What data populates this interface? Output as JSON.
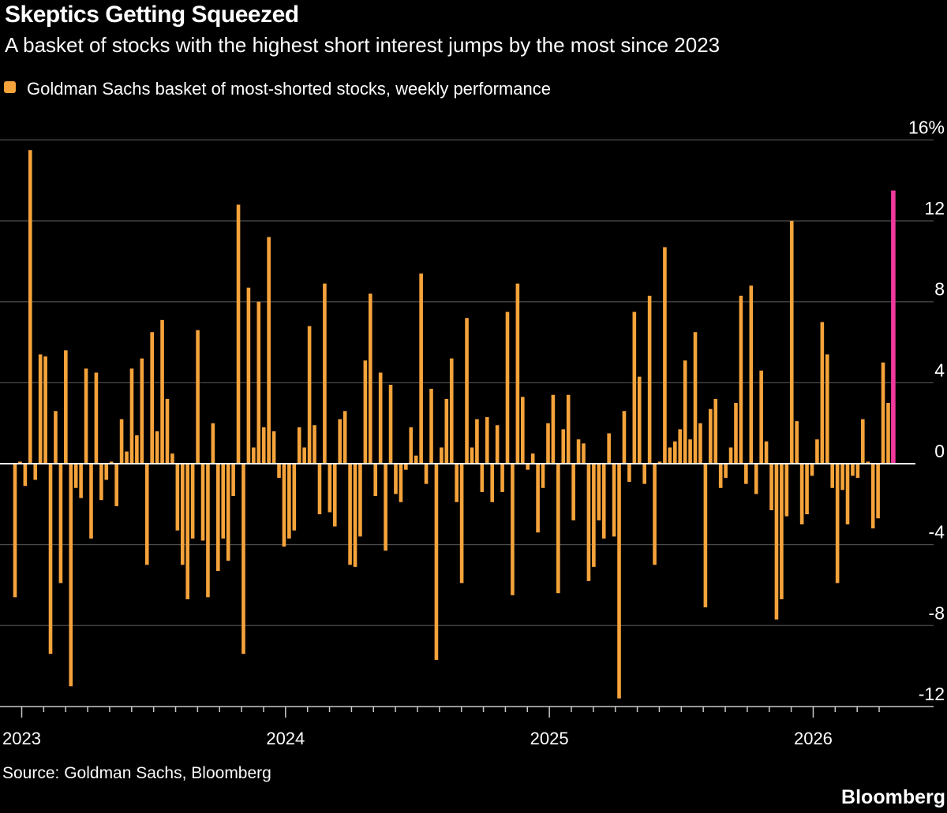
{
  "header": {
    "title": "Skeptics Getting Squeezed",
    "subtitle": "A basket of stocks with the highest short interest jumps by the most since 2023"
  },
  "legend": {
    "label": "Goldman Sachs basket of most-shorted stocks, weekly performance",
    "swatch_color": "#F5A33B"
  },
  "source": {
    "text": "Source: Goldman Sachs, Bloomberg"
  },
  "branding": {
    "logo": "Bloomberg"
  },
  "colors": {
    "background": "#000000",
    "bar_orange": "#F5A33B",
    "highlight_pink": "#F0399C",
    "gridline": "#4b4b4b",
    "zero_line": "#ffffff",
    "axis_line": "#c8c8c8",
    "text": "#ffffff"
  },
  "chart_data": {
    "type": "bar",
    "title": "Skeptics Getting Squeezed",
    "subtitle": "A basket of stocks with the highest short interest jumps by the most since 2023",
    "series_name": "Goldman Sachs basket of most-shorted stocks, weekly performance",
    "frequency": "weekly",
    "unit": "%",
    "ylim": [
      -12.5,
      16.7
    ],
    "grid": true,
    "y_ticks": [
      16,
      12,
      8,
      4,
      0,
      -4,
      -8,
      -12
    ],
    "y_tick_suffix_first": "%",
    "x_tick_labels": [
      "2023",
      "2024",
      "2025",
      "2026"
    ],
    "legend_position": "top-left",
    "highlight_last_bar": true,
    "note": "last bar highlighted in pink, biggest weekly jump since 2023, approx +13.5%",
    "values_by_year": {
      "2023": [
        -6.6,
        0.1,
        -1.1,
        15.5,
        -0.8,
        5.4,
        5.3,
        -9.4,
        2.6,
        -5.9,
        5.6,
        -11.0,
        -1.2,
        -1.7,
        4.7,
        -3.7,
        4.5,
        -1.8,
        -0.8,
        0.1,
        -2.1,
        2.2,
        0.6,
        4.7,
        1.4,
        5.2,
        -5.0,
        6.5,
        1.6,
        7.1,
        3.2,
        0.5,
        -3.3,
        -5.0,
        -6.7,
        -3.7,
        6.6,
        -3.8,
        -6.6,
        2.0,
        -5.3,
        -3.7,
        -4.8,
        -1.6,
        12.8,
        -9.4,
        8.7,
        0.8,
        8.0,
        1.8,
        11.2,
        1.6,
        -0.7
      ],
      "2024": [
        -4.1,
        -3.7,
        -3.3,
        1.8,
        0.8,
        6.8,
        1.9,
        -2.5,
        8.9,
        -2.4,
        -3.1,
        2.2,
        2.6,
        -5.0,
        -5.1,
        -3.6,
        5.1,
        8.4,
        -1.6,
        4.5,
        -4.3,
        3.9,
        -1.5,
        -1.9,
        -0.3,
        1.8,
        0.4,
        9.4,
        -1.0,
        3.7,
        -9.7,
        0.8,
        3.2,
        5.2,
        -1.9,
        -5.9,
        7.2,
        0.8,
        2.2,
        -1.4,
        2.3,
        -1.9,
        1.9,
        -1.4,
        7.5,
        -6.5,
        8.9,
        3.3,
        -0.3,
        0.5,
        -3.4,
        -1.2
      ],
      "2025": [
        2.0,
        3.4,
        -6.4,
        1.7,
        3.4,
        -2.8,
        1.2,
        1.0,
        -5.8,
        -5.1,
        -2.8,
        -3.7,
        1.5,
        -3.6,
        -11.6,
        2.6,
        -0.9,
        7.5,
        4.3,
        -1.0,
        8.3,
        -5.0,
        0.1,
        10.7,
        0.8,
        1.1,
        1.7,
        5.1,
        1.2,
        6.5,
        2.0,
        -7.1,
        2.7,
        3.2,
        -1.2,
        -0.7,
        0.8,
        3.0,
        8.3,
        -1.0,
        8.8,
        -1.5,
        4.6,
        1.1,
        -2.3,
        -7.7,
        -6.7,
        -2.6,
        12.0,
        2.1,
        -3.0,
        -2.5
      ],
      "2026": [
        -0.6,
        1.2,
        7.0,
        5.4,
        -1.2,
        -5.9,
        -1.3,
        -3.0,
        -0.6,
        -0.7,
        2.2,
        0.1,
        -3.2,
        -2.7,
        5.0,
        3.0,
        13.5
      ]
    }
  }
}
